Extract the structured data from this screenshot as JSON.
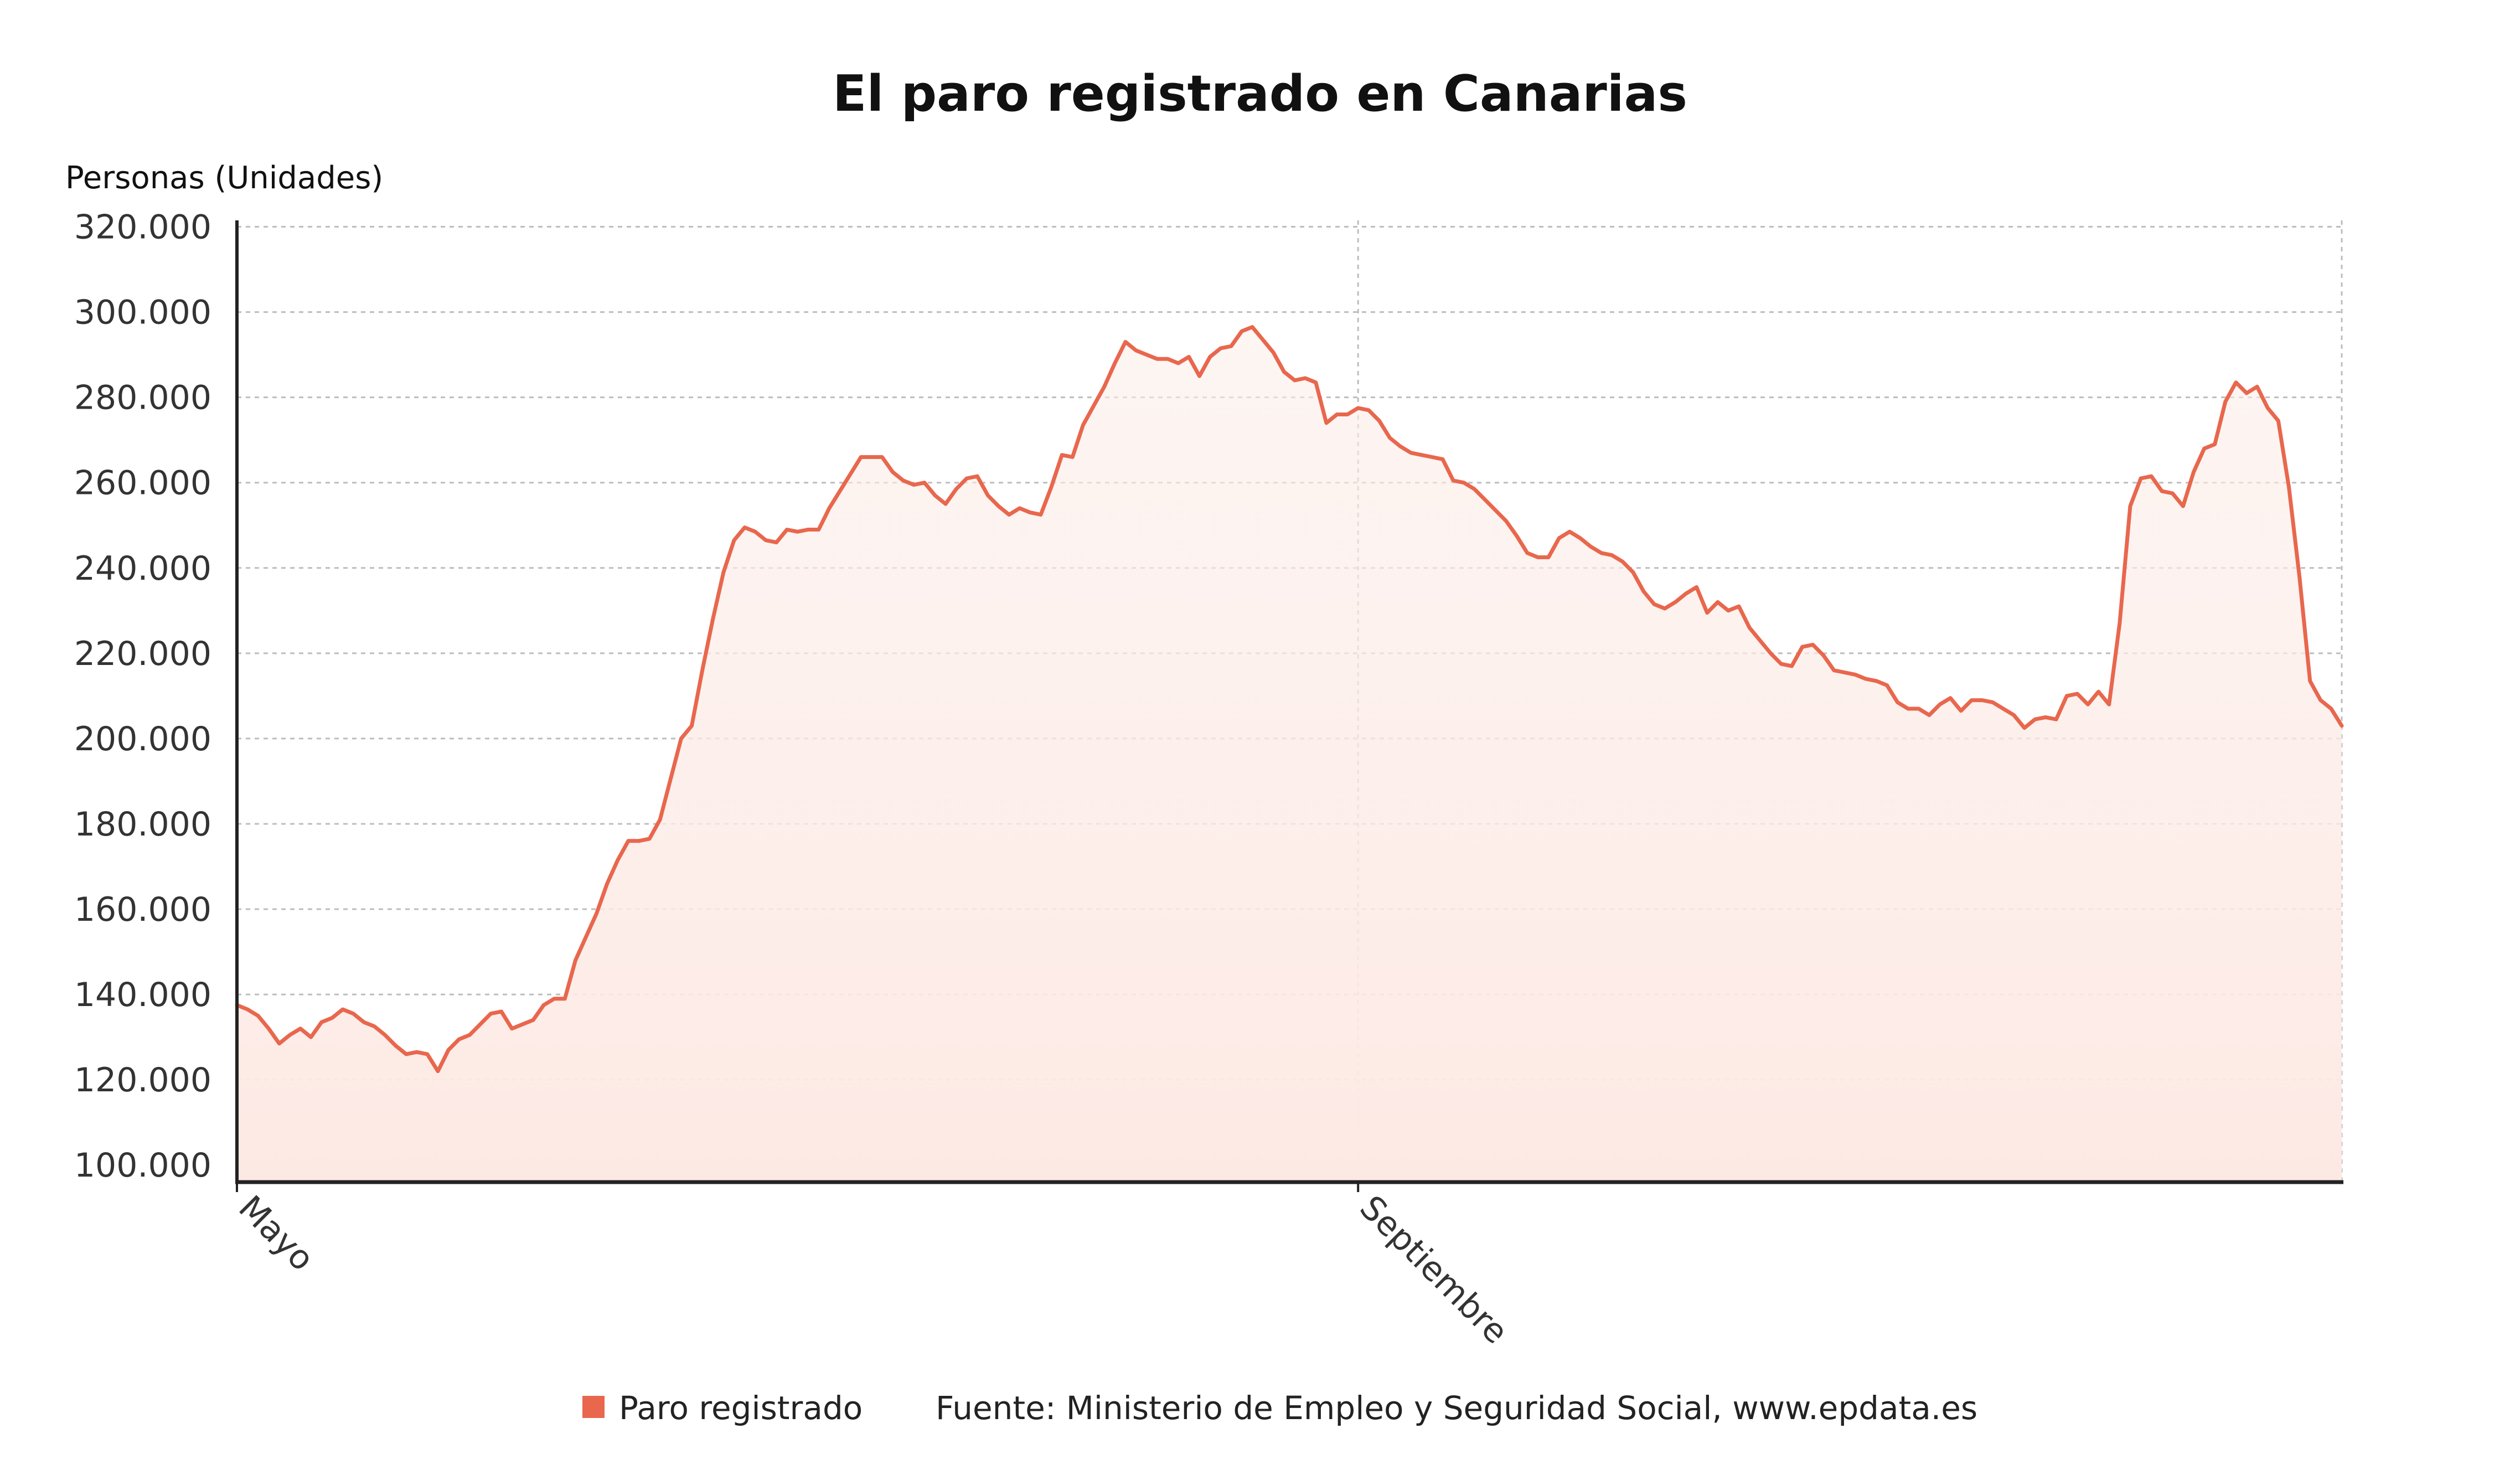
{
  "colors": {
    "series": "#e8674d",
    "fill_top": "#fbeee9",
    "fill_bottom": "#fde9e4",
    "axis": "#222222",
    "grid": "#bdbdbd"
  },
  "chart_data": {
    "type": "area",
    "title": "El paro registrado en Canarias",
    "ylabel": "Personas (Unidades)",
    "xlabel": "",
    "ylim": [
      96000,
      321500
    ],
    "yticks": [
      320000,
      300000,
      280000,
      260000,
      240000,
      220000,
      200000,
      180000,
      160000,
      140000,
      120000,
      100000
    ],
    "ytick_labels": [
      "320.000",
      "300.000",
      "280.000",
      "260.000",
      "240.000",
      "220.000",
      "200.000",
      "180.000",
      "160.000",
      "140.000",
      "120.000",
      "100.000"
    ],
    "xtick_labels": [
      {
        "label": "Mayo",
        "index": 0
      },
      {
        "label": "Septiembre",
        "index": 106
      }
    ],
    "grid": true,
    "legend": "bottom-center",
    "series": [
      {
        "name": "Paro registrado",
        "values": [
          137500,
          136500,
          135000,
          132000,
          128500,
          130500,
          132000,
          130000,
          133500,
          134500,
          136500,
          135500,
          133500,
          132500,
          130500,
          128000,
          126000,
          126500,
          126000,
          122000,
          127000,
          129500,
          130500,
          133000,
          135500,
          136000,
          132000,
          133000,
          134000,
          137500,
          139000,
          139000,
          148000,
          153500,
          159000,
          166000,
          171500,
          176000,
          176000,
          176500,
          181000,
          190500,
          200000,
          203000,
          216000,
          228000,
          239000,
          246500,
          249500,
          248500,
          246500,
          246000,
          249000,
          248500,
          249000,
          249000,
          254000,
          258000,
          262000,
          266000,
          266000,
          266000,
          262500,
          260500,
          259500,
          260000,
          257000,
          255000,
          258500,
          261000,
          261500,
          257000,
          254500,
          252500,
          254000,
          253000,
          252500,
          259000,
          266500,
          266000,
          273500,
          278000,
          282500,
          288000,
          293000,
          291000,
          290000,
          289000,
          289000,
          288000,
          289500,
          285000,
          289500,
          291500,
          292000,
          295500,
          296500,
          293500,
          290500,
          286000,
          284000,
          284500,
          283500,
          274000,
          276000,
          276000,
          277500,
          277000,
          274500,
          270500,
          268500,
          267000,
          266500,
          266000,
          265500,
          260500,
          260000,
          258500,
          256000,
          253500,
          251000,
          247500,
          243500,
          242500,
          242500,
          247000,
          248500,
          247000,
          245000,
          243500,
          243000,
          241500,
          239000,
          234500,
          231500,
          230500,
          232000,
          234000,
          235500,
          229500,
          232000,
          230000,
          231000,
          226000,
          223000,
          220000,
          217500,
          217000,
          221500,
          222000,
          219500,
          216000,
          215500,
          215000,
          214000,
          213500,
          212500,
          208500,
          207000,
          207000,
          205500,
          208000,
          209500,
          206500,
          209000,
          209000,
          208500,
          207000,
          205500,
          202500,
          204500,
          205000,
          204500,
          210000,
          210500,
          208000,
          211000,
          208000,
          227000,
          254500,
          261000,
          261500,
          258000,
          257500,
          254500,
          262500,
          268000,
          269000,
          279000,
          283500,
          281000,
          282500,
          277500,
          274500,
          259000,
          238000,
          213500,
          209000,
          207000,
          203000
        ]
      }
    ],
    "legend_label": "Paro registrado",
    "source": "Fuente: Ministerio de Empleo y Seguridad Social, www.epdata.es"
  }
}
